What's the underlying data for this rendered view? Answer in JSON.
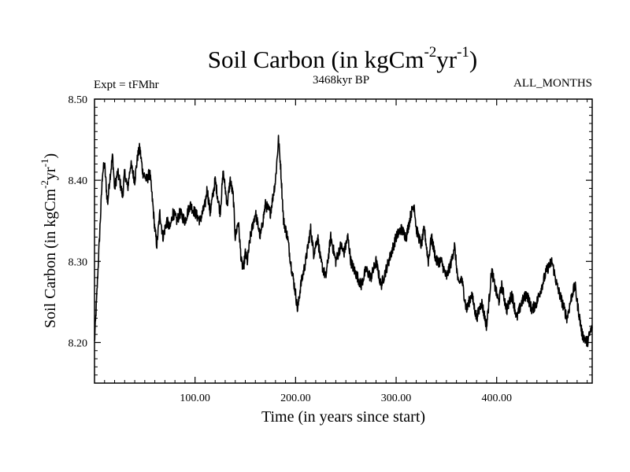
{
  "chart_data": {
    "type": "line",
    "title": "Soil Carbon (in kgCm",
    "title_sup1": "-2",
    "title_mid": "yr",
    "title_sup2": "-1",
    "title_end": ")",
    "subtitle_left": "Expt = tFMhr",
    "subtitle_center": "3468kyr BP",
    "subtitle_right": "ALL_MONTHS",
    "xlabel": "Time (in years since start)",
    "ylabel": "Soil Carbon (in kgCm",
    "ylabel_sup1": "-2",
    "ylabel_mid": "yr",
    "ylabel_sup2": "-1",
    "ylabel_end": ")",
    "xlim": [
      0,
      495
    ],
    "ylim": [
      8.15,
      8.5
    ],
    "xticks": [
      100,
      200,
      300,
      400
    ],
    "xtick_labels": [
      "100.00",
      "200.00",
      "300.00",
      "400.00"
    ],
    "yticks": [
      8.2,
      8.3,
      8.4,
      8.5
    ],
    "ytick_labels": [
      "8.20",
      "8.30",
      "8.40",
      "8.50"
    ],
    "line_color": "#000000",
    "series": [
      {
        "name": "Soil Carbon",
        "x": [
          0,
          2,
          5,
          8,
          10,
          13,
          15,
          18,
          20,
          23,
          25,
          28,
          30,
          33,
          36,
          40,
          43,
          45,
          48,
          52,
          55,
          58,
          60,
          62,
          65,
          68,
          72,
          75,
          78,
          82,
          85,
          90,
          95,
          100,
          105,
          110,
          112,
          115,
          120,
          125,
          128,
          132,
          135,
          138,
          140,
          143,
          146,
          148,
          150,
          152,
          155,
          160,
          165,
          170,
          175,
          180,
          183,
          185,
          188,
          192,
          195,
          200,
          202,
          205,
          210,
          215,
          218,
          222,
          225,
          230,
          235,
          240,
          245,
          248,
          252,
          255,
          258,
          262,
          265,
          270,
          275,
          280,
          285,
          290,
          295,
          300,
          305,
          310,
          315,
          318,
          320,
          325,
          328,
          332,
          335,
          340,
          345,
          350,
          355,
          358,
          362,
          365,
          370,
          375,
          380,
          385,
          390,
          393,
          395,
          398,
          402,
          405,
          410,
          415,
          420,
          425,
          430,
          435,
          440,
          445,
          450,
          455,
          460,
          465,
          470,
          475,
          478,
          480,
          485,
          490,
          495
        ],
        "values": [
          8.2,
          8.25,
          8.33,
          8.41,
          8.42,
          8.37,
          8.4,
          8.43,
          8.39,
          8.41,
          8.4,
          8.38,
          8.41,
          8.39,
          8.42,
          8.4,
          8.43,
          8.44,
          8.41,
          8.4,
          8.41,
          8.37,
          8.34,
          8.32,
          8.36,
          8.33,
          8.35,
          8.34,
          8.36,
          8.35,
          8.36,
          8.35,
          8.37,
          8.36,
          8.35,
          8.37,
          8.39,
          8.36,
          8.4,
          8.36,
          8.41,
          8.37,
          8.4,
          8.38,
          8.33,
          8.35,
          8.3,
          8.29,
          8.31,
          8.3,
          8.33,
          8.36,
          8.33,
          8.37,
          8.36,
          8.4,
          8.45,
          8.42,
          8.35,
          8.33,
          8.3,
          8.26,
          8.24,
          8.27,
          8.3,
          8.34,
          8.31,
          8.33,
          8.3,
          8.28,
          8.33,
          8.3,
          8.32,
          8.31,
          8.33,
          8.3,
          8.29,
          8.28,
          8.27,
          8.29,
          8.28,
          8.3,
          8.27,
          8.29,
          8.31,
          8.33,
          8.34,
          8.33,
          8.36,
          8.37,
          8.34,
          8.32,
          8.34,
          8.3,
          8.33,
          8.3,
          8.3,
          8.28,
          8.3,
          8.32,
          8.27,
          8.28,
          8.24,
          8.26,
          8.23,
          8.25,
          8.22,
          8.26,
          8.29,
          8.27,
          8.25,
          8.27,
          8.24,
          8.26,
          8.23,
          8.25,
          8.26,
          8.24,
          8.25,
          8.27,
          8.29,
          8.3,
          8.27,
          8.25,
          8.23,
          8.26,
          8.27,
          8.25,
          8.21,
          8.2,
          8.22
        ]
      }
    ]
  }
}
